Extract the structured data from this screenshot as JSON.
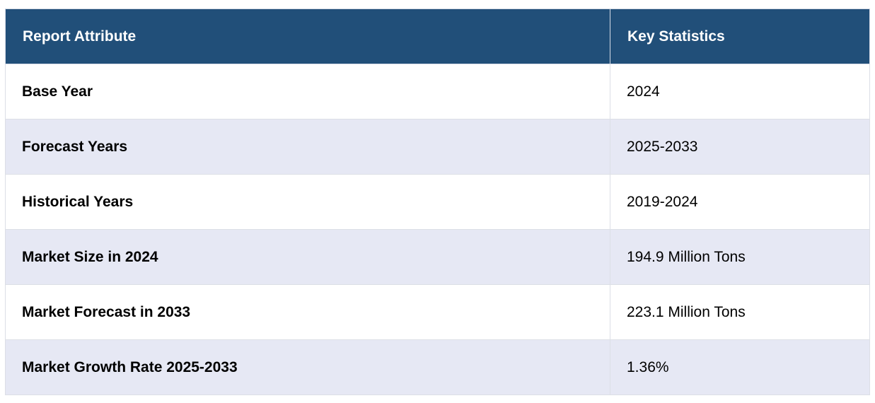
{
  "table": {
    "headers": [
      "Report Attribute",
      "Key Statistics"
    ],
    "rows": [
      {
        "attribute": "Base Year",
        "value": "2024"
      },
      {
        "attribute": "Forecast Years",
        "value": "2025-2033"
      },
      {
        "attribute": "Historical Years",
        "value": "2019-2024"
      },
      {
        "attribute": "Market Size in 2024",
        "value": "194.9 Million Tons"
      },
      {
        "attribute": "Market Forecast in 2033",
        "value": "223.1 Million Tons"
      },
      {
        "attribute": "Market Growth Rate 2025-2033",
        "value": "1.36%"
      }
    ]
  },
  "colors": {
    "header_bg": "#214f79",
    "header_text": "#ffffff",
    "row_alt_bg": "#e6e8f4",
    "row_bg": "#ffffff"
  }
}
